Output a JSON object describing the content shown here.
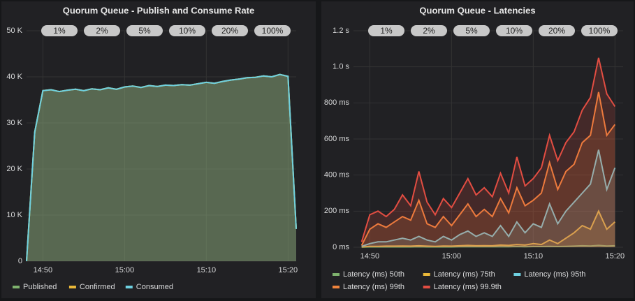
{
  "chart_data": [
    {
      "type": "line",
      "title": "Quorum Queue - Publish and Consume Rate",
      "x": [
        "14:48",
        "14:49",
        "14:50",
        "14:51",
        "14:52",
        "14:53",
        "14:54",
        "14:55",
        "14:56",
        "14:57",
        "14:58",
        "14:59",
        "15:00",
        "15:01",
        "15:02",
        "15:03",
        "15:04",
        "15:05",
        "15:06",
        "15:07",
        "15:08",
        "15:09",
        "15:10",
        "15:11",
        "15:12",
        "15:13",
        "15:14",
        "15:15",
        "15:16",
        "15:17",
        "15:18",
        "15:19",
        "15:20",
        "15:21"
      ],
      "series": [
        {
          "name": "Published",
          "color": "#7eb26d",
          "values": [
            0,
            28000,
            37000,
            37200,
            36800,
            37100,
            37300,
            37000,
            37400,
            37200,
            37600,
            37300,
            37800,
            38000,
            37700,
            38100,
            37900,
            38200,
            38100,
            38300,
            38200,
            38500,
            38800,
            38600,
            39000,
            39300,
            39500,
            39800,
            39900,
            40200,
            40000,
            40500,
            40100,
            7000
          ]
        },
        {
          "name": "Confirmed",
          "color": "#eab839",
          "values": [
            0,
            28000,
            37000,
            37200,
            36800,
            37100,
            37300,
            37000,
            37400,
            37200,
            37600,
            37300,
            37800,
            38000,
            37700,
            38100,
            37900,
            38200,
            38100,
            38300,
            38200,
            38500,
            38800,
            38600,
            39000,
            39300,
            39500,
            39800,
            39900,
            40200,
            40000,
            40500,
            40100,
            7000
          ]
        },
        {
          "name": "Consumed",
          "color": "#6ed0e0",
          "values": [
            0,
            28000,
            37000,
            37200,
            36800,
            37100,
            37300,
            37000,
            37400,
            37200,
            37600,
            37300,
            37800,
            38000,
            37700,
            38100,
            37900,
            38200,
            38100,
            38300,
            38200,
            38500,
            38800,
            38600,
            39000,
            39300,
            39500,
            39800,
            39900,
            40200,
            40000,
            40500,
            40100,
            7000
          ]
        }
      ],
      "xlim": [
        "14:48",
        "15:21"
      ],
      "xticks": [
        "14:50",
        "15:00",
        "15:10",
        "15:20"
      ],
      "ylim": [
        0,
        50000
      ],
      "yticks": [
        {
          "value": 0,
          "label": "0"
        },
        {
          "value": 10000,
          "label": "10 K"
        },
        {
          "value": 20000,
          "label": "20 K"
        },
        {
          "value": 30000,
          "label": "30 K"
        },
        {
          "value": 40000,
          "label": "40 K"
        },
        {
          "value": 50000,
          "label": "50 K"
        }
      ],
      "annotations": [
        "1%",
        "2%",
        "5%",
        "10%",
        "20%",
        "100%"
      ],
      "grid": true,
      "fill": true
    },
    {
      "type": "line",
      "title": "Quorum Queue - Latencies",
      "x": [
        "14:49",
        "14:50",
        "14:51",
        "14:52",
        "14:53",
        "14:54",
        "14:55",
        "14:56",
        "14:57",
        "14:58",
        "14:59",
        "15:00",
        "15:01",
        "15:02",
        "15:03",
        "15:04",
        "15:05",
        "15:06",
        "15:07",
        "15:08",
        "15:09",
        "15:10",
        "15:11",
        "15:12",
        "15:13",
        "15:14",
        "15:15",
        "15:16",
        "15:17",
        "15:18",
        "15:19",
        "15:20"
      ],
      "series": [
        {
          "name": "Latency (ms) 50th",
          "color": "#7eb26d",
          "values": [
            1,
            2,
            2,
            2,
            2,
            2,
            2,
            3,
            2,
            2,
            2,
            2,
            3,
            3,
            3,
            3,
            3,
            3,
            3,
            4,
            3,
            4,
            4,
            5,
            4,
            5,
            6,
            8,
            7,
            10,
            7,
            8
          ]
        },
        {
          "name": "Latency (ms) 75th",
          "color": "#eab839",
          "values": [
            2,
            5,
            5,
            6,
            6,
            7,
            6,
            8,
            6,
            5,
            7,
            6,
            8,
            10,
            8,
            9,
            8,
            12,
            10,
            15,
            12,
            20,
            15,
            40,
            20,
            50,
            80,
            120,
            100,
            200,
            100,
            140
          ]
        },
        {
          "name": "Latency (ms) 95th",
          "color": "#6ed0e0",
          "values": [
            5,
            20,
            30,
            30,
            40,
            50,
            40,
            60,
            40,
            30,
            60,
            40,
            70,
            90,
            60,
            80,
            60,
            120,
            60,
            140,
            80,
            130,
            110,
            240,
            130,
            200,
            250,
            300,
            350,
            540,
            320,
            440
          ]
        },
        {
          "name": "Latency (ms) 99th",
          "color": "#ef843c",
          "values": [
            10,
            100,
            130,
            110,
            140,
            170,
            150,
            260,
            130,
            110,
            170,
            120,
            180,
            240,
            170,
            210,
            170,
            270,
            190,
            330,
            230,
            260,
            300,
            470,
            320,
            420,
            460,
            580,
            620,
            860,
            620,
            680
          ]
        },
        {
          "name": "Latency (ms) 99.9th",
          "color": "#e24d42",
          "values": [
            30,
            180,
            200,
            170,
            210,
            290,
            230,
            420,
            250,
            180,
            270,
            220,
            300,
            380,
            290,
            330,
            280,
            410,
            300,
            500,
            340,
            380,
            440,
            620,
            480,
            580,
            640,
            760,
            830,
            1050,
            850,
            780
          ]
        }
      ],
      "xlim": [
        "14:48",
        "15:21"
      ],
      "xticks": [
        "14:50",
        "15:00",
        "15:10",
        "15:20"
      ],
      "ylim": [
        0,
        1200
      ],
      "yticks": [
        {
          "value": 0,
          "label": "0 ms"
        },
        {
          "value": 200,
          "label": "200 ms"
        },
        {
          "value": 400,
          "label": "400 ms"
        },
        {
          "value": 600,
          "label": "600 ms"
        },
        {
          "value": 800,
          "label": "800 ms"
        },
        {
          "value": 1000,
          "label": "1.0 s"
        },
        {
          "value": 1200,
          "label": "1.2 s"
        }
      ],
      "annotations": [
        "1%",
        "2%",
        "5%",
        "10%",
        "20%",
        "100%"
      ],
      "grid": true,
      "fill": true
    }
  ]
}
